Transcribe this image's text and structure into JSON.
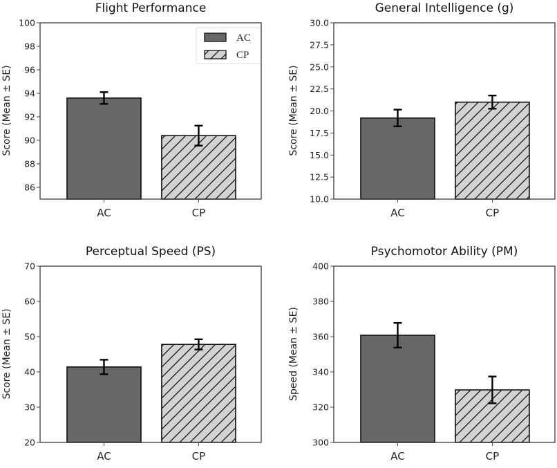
{
  "colors": {
    "ac_fill": "#676767",
    "cp_fill": "#d3d3d3",
    "edge": "#111111",
    "axis": "#444444"
  },
  "legend": {
    "placement": "top-right",
    "entries": [
      {
        "label": "AC",
        "style": "solid-dark"
      },
      {
        "label": "CP",
        "style": "hatched-light"
      }
    ]
  },
  "chart_data": [
    {
      "type": "bar",
      "title": "Flight Performance",
      "xlabel": "",
      "ylabel": "Score (Mean ± SE)",
      "categories": [
        "AC",
        "CP"
      ],
      "values": [
        93.6,
        90.4
      ],
      "errors": [
        0.5,
        0.85
      ],
      "ylim": [
        85,
        100
      ],
      "yticks": [
        86,
        88,
        90,
        92,
        94,
        96,
        98,
        100
      ],
      "ytick_labels": [
        "86",
        "88",
        "90",
        "92",
        "94",
        "96",
        "98",
        "100"
      ],
      "grid": false,
      "legend": true
    },
    {
      "type": "bar",
      "title": "General Intelligence (g)",
      "xlabel": "",
      "ylabel": "Score (Mean ± SE)",
      "categories": [
        "AC",
        "CP"
      ],
      "values": [
        19.2,
        21.0
      ],
      "errors": [
        0.95,
        0.75
      ],
      "ylim": [
        10,
        30
      ],
      "yticks": [
        10,
        12.5,
        15,
        17.5,
        20,
        22.5,
        25,
        27.5,
        30
      ],
      "ytick_labels": [
        "10.0",
        "12.5",
        "15.0",
        "17.5",
        "20.0",
        "22.5",
        "25.0",
        "27.5",
        "30.0"
      ],
      "grid": false,
      "legend": false
    },
    {
      "type": "bar",
      "title": "Perceptual Speed (PS)",
      "xlabel": "",
      "ylabel": "Score (Mean ± SE)",
      "categories": [
        "AC",
        "CP"
      ],
      "values": [
        41.4,
        47.8
      ],
      "errors": [
        2.05,
        1.45
      ],
      "ylim": [
        20,
        70
      ],
      "yticks": [
        20,
        30,
        40,
        50,
        60,
        70
      ],
      "ytick_labels": [
        "20",
        "30",
        "40",
        "50",
        "60",
        "70"
      ],
      "grid": false,
      "legend": false
    },
    {
      "type": "bar",
      "title": "Psychomotor Ability (PM)",
      "xlabel": "",
      "ylabel": "Speed (Mean ± SE)",
      "categories": [
        "AC",
        "CP"
      ],
      "values": [
        360.8,
        329.8
      ],
      "errors": [
        7.0,
        7.6
      ],
      "ylim": [
        300,
        400
      ],
      "yticks": [
        300,
        320,
        340,
        360,
        380,
        400
      ],
      "ytick_labels": [
        "300",
        "320",
        "340",
        "360",
        "380",
        "400"
      ],
      "grid": false,
      "legend": false
    }
  ]
}
